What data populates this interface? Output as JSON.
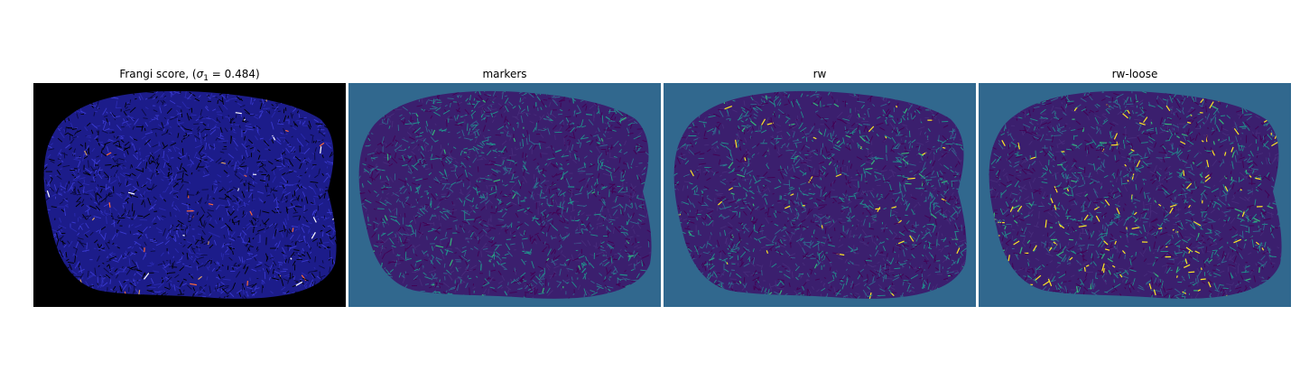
{
  "panels": [
    {
      "title_prefix": "Frangi score, (",
      "title_symbol": "σ",
      "title_sub": "1",
      "title_suffix": " = 0.484)",
      "background": "#000000",
      "blob_fill": "#1c1c8a",
      "texture_colors": [
        "#000000",
        "#2a2ab0",
        "#0b0b40",
        "#3a3ad0"
      ],
      "highlight_colors": [
        "#ffffff",
        "#ff6a3a",
        "#d9a066"
      ],
      "highlight_ratio": 0.015
    },
    {
      "title": "markers",
      "background": "#31688e",
      "blob_fill": "#3b1f6e",
      "texture_colors": [
        "#440154",
        "#31688e",
        "#472d7b",
        "#21918c"
      ],
      "highlight_colors": [
        "#35b779",
        "#21918c"
      ],
      "highlight_ratio": 0.03
    },
    {
      "title": "rw",
      "background": "#31688e",
      "blob_fill": "#3b1f6e",
      "texture_colors": [
        "#440154",
        "#31688e",
        "#472d7b",
        "#21918c"
      ],
      "highlight_colors": [
        "#35b779",
        "#fde725"
      ],
      "highlight_ratio": 0.04
    },
    {
      "title": "rw-loose",
      "background": "#31688e",
      "blob_fill": "#3b1f6e",
      "texture_colors": [
        "#440154",
        "#31688e",
        "#472d7b",
        "#21918c"
      ],
      "highlight_colors": [
        "#fde725",
        "#35b779",
        "#fde725"
      ],
      "highlight_ratio": 0.09
    }
  ]
}
